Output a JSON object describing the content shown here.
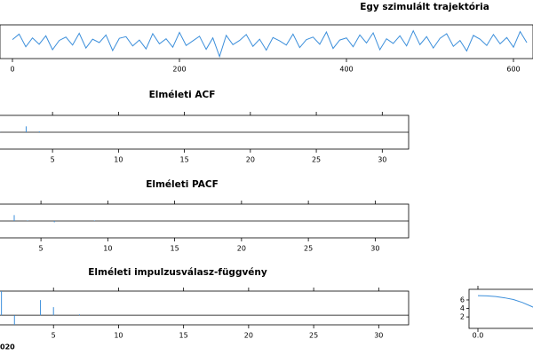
{
  "chart_data": [
    {
      "type": "line",
      "title": "Egy szimulált trajektória",
      "color": "#3c8fdb",
      "x": [
        0,
        8,
        16,
        24,
        32,
        40,
        48,
        56,
        64,
        72,
        80,
        88,
        96,
        104,
        112,
        120,
        128,
        136,
        144,
        152,
        160,
        168,
        176,
        184,
        192,
        200,
        208,
        216,
        224,
        232,
        240,
        248,
        256,
        264,
        272,
        280,
        288,
        296,
        304,
        312,
        320,
        328,
        336,
        344,
        352,
        360,
        368,
        376,
        384,
        392,
        400,
        408,
        416,
        424,
        432,
        440,
        448,
        456,
        464,
        472,
        480,
        488,
        496,
        504,
        512,
        520,
        528,
        536,
        544,
        552,
        560,
        568,
        576,
        584,
        592,
        600,
        608,
        616
      ],
      "values": [
        0.5,
        1.8,
        -1.2,
        0.9,
        -0.6,
        1.4,
        -1.9,
        0.3,
        1.1,
        -0.8,
        2.0,
        -1.5,
        0.6,
        -0.2,
        1.6,
        -2.1,
        0.8,
        1.2,
        -1.0,
        0.4,
        -1.7,
        1.9,
        -0.5,
        0.7,
        -1.3,
        2.2,
        -0.9,
        0.2,
        1.3,
        -1.8,
        0.9,
        -3.5,
        1.5,
        -0.7,
        0.3,
        1.7,
        -1.1,
        0.6,
        -2.0,
        1.0,
        0.2,
        -0.8,
        1.8,
        -1.4,
        0.5,
        1.1,
        -0.6,
        2.3,
        -1.6,
        0.4,
        0.9,
        -1.2,
        1.6,
        -0.3,
        2.1,
        -1.9,
        0.7,
        -0.4,
        1.4,
        -1.0,
        2.6,
        -0.7,
        1.2,
        -1.5,
        0.8,
        1.9,
        -1.1,
        0.3,
        -2.2,
        1.5,
        0.6,
        -0.9,
        1.7,
        -0.5,
        1.0,
        -1.3,
        2.4,
        -0.2
      ],
      "xlim": [
        -14.9,
        623.4
      ],
      "ylim": [
        -4,
        4
      ],
      "xticks": [
        0,
        200,
        400,
        600
      ]
    },
    {
      "type": "bar",
      "title": "Elméleti ACF",
      "color": "#3c8fdb",
      "x": [
        1,
        2,
        3,
        4,
        5,
        6,
        7,
        8,
        9,
        10,
        11,
        12,
        13,
        14,
        15,
        16,
        17,
        18,
        19,
        20,
        21,
        22,
        23,
        24,
        25,
        26,
        27,
        28,
        29,
        30,
        31,
        32
      ],
      "values": [
        0.02,
        0,
        0.35,
        0.05,
        0,
        0,
        0,
        0,
        0,
        0,
        0,
        0,
        0,
        0,
        0,
        0,
        0,
        0,
        0,
        0,
        0,
        0,
        0,
        0,
        0,
        0,
        0,
        0,
        0,
        0,
        0,
        0
      ],
      "xlim": [
        0.95,
        32
      ],
      "ylim": [
        -1,
        1
      ],
      "xticks": [
        5,
        10,
        15,
        20,
        25,
        30
      ]
    },
    {
      "type": "bar",
      "title": "Elméleti PACF",
      "color": "#3c8fdb",
      "x": [
        1,
        2,
        3,
        4,
        5,
        6,
        7,
        8,
        9,
        10,
        11,
        12,
        13,
        14,
        15,
        16,
        17,
        18,
        19,
        20,
        21,
        22,
        23,
        24,
        25,
        26,
        27,
        28,
        29,
        30,
        31,
        32
      ],
      "values": [
        0,
        0,
        0.35,
        0.03,
        0,
        -0.08,
        0,
        0,
        0.03,
        0,
        0,
        0,
        0,
        0,
        0,
        0,
        0,
        0,
        0,
        0,
        0,
        0,
        0,
        0,
        0,
        0,
        0,
        0,
        0,
        0,
        0,
        0
      ],
      "xlim": [
        1.87,
        32.5
      ],
      "ylim": [
        -1,
        1
      ],
      "xticks": [
        5,
        10,
        15,
        20,
        25,
        30
      ]
    },
    {
      "type": "bar",
      "title": "Elméleti impulzusválasz-függvény",
      "color": "#3c8fdb",
      "x": [
        1,
        2,
        3,
        4,
        5,
        6,
        7,
        8,
        9,
        10,
        11,
        12,
        13,
        14,
        15,
        16,
        17,
        18,
        19,
        20,
        21,
        22,
        23,
        24,
        25,
        26,
        27,
        28,
        29,
        30,
        31,
        32
      ],
      "values": [
        1.5,
        -0.6,
        0,
        0.94,
        0.5,
        0,
        0.05,
        0,
        0,
        0,
        0,
        0,
        0,
        0,
        0,
        0,
        0,
        0,
        0,
        0,
        0,
        0,
        0,
        0,
        0,
        0,
        0,
        0,
        0,
        0,
        0,
        0
      ],
      "xlim": [
        0.82,
        32.3
      ],
      "ylim": [
        -0.6,
        1.5
      ],
      "xticks": [
        5,
        10,
        15,
        20,
        25,
        30
      ]
    },
    {
      "type": "line",
      "color": "#3c8fdb",
      "x": [
        0,
        0.1,
        0.2,
        0.3,
        0.4,
        0.5,
        0.6,
        0.7
      ],
      "values": [
        7.0,
        6.95,
        6.8,
        6.5,
        6.1,
        5.4,
        4.5,
        3.5
      ],
      "xlim": [
        -0.1,
        0.64
      ],
      "ylim": [
        -0.7,
        8.5
      ],
      "xticks": [
        {
          "value": 0,
          "label": "0.0"
        }
      ],
      "yticks": [
        2,
        4,
        6
      ]
    }
  ],
  "footer": "020"
}
